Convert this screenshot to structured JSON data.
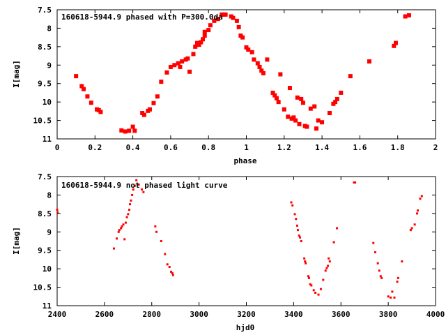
{
  "chart_data": [
    {
      "type": "scatter",
      "title": "160618-5944.9 phased with P=300.0da",
      "xlabel": "phase",
      "ylabel": "I[mag]",
      "xlim": [
        0,
        2
      ],
      "ylim": [
        11,
        7.5
      ],
      "y_inverted": true,
      "grid": false,
      "xticks": [
        "0",
        "0.2",
        "0.4",
        "0.6",
        "0.8",
        "1",
        "1.2",
        "1.4",
        "1.6",
        "1.8",
        "2"
      ],
      "xtick_values": [
        0,
        0.2,
        0.4,
        0.6,
        0.8,
        1.0,
        1.2,
        1.4,
        1.6,
        1.8,
        2.0
      ],
      "yticks": [
        "7.5",
        "8",
        "8.5",
        "9",
        "9.5",
        "10",
        "10.5",
        "11"
      ],
      "ytick_values": [
        7.5,
        8,
        8.5,
        9,
        9.5,
        10,
        10.5,
        11
      ],
      "marker_color": "#ff0000",
      "marker_size": "large",
      "points": [
        [
          0.1,
          9.3
        ],
        [
          0.13,
          9.57
        ],
        [
          0.14,
          9.65
        ],
        [
          0.16,
          9.85
        ],
        [
          0.18,
          10.02
        ],
        [
          0.21,
          10.2
        ],
        [
          0.22,
          10.22
        ],
        [
          0.23,
          10.27
        ],
        [
          0.34,
          10.77
        ],
        [
          0.36,
          10.8
        ],
        [
          0.38,
          10.78
        ],
        [
          0.4,
          10.67
        ],
        [
          0.41,
          10.78
        ],
        [
          0.45,
          10.3
        ],
        [
          0.46,
          10.35
        ],
        [
          0.48,
          10.24
        ],
        [
          0.49,
          10.2
        ],
        [
          0.51,
          10.03
        ],
        [
          0.53,
          9.85
        ],
        [
          0.55,
          9.45
        ],
        [
          0.58,
          9.2
        ],
        [
          0.6,
          9.05
        ],
        [
          0.62,
          9.0
        ],
        [
          0.64,
          8.95
        ],
        [
          0.65,
          9.05
        ],
        [
          0.66,
          8.9
        ],
        [
          0.68,
          8.85
        ],
        [
          0.69,
          8.82
        ],
        [
          0.7,
          9.18
        ],
        [
          0.72,
          8.7
        ],
        [
          0.73,
          8.5
        ],
        [
          0.74,
          8.4
        ],
        [
          0.75,
          8.45
        ],
        [
          0.76,
          8.38
        ],
        [
          0.77,
          8.3
        ],
        [
          0.78,
          8.2
        ],
        [
          0.78,
          8.1
        ],
        [
          0.8,
          8.05
        ],
        [
          0.81,
          7.92
        ],
        [
          0.83,
          7.8
        ],
        [
          0.85,
          7.75
        ],
        [
          0.87,
          7.63
        ],
        [
          0.88,
          7.63
        ],
        [
          0.89,
          7.63
        ],
        [
          0.92,
          7.68
        ],
        [
          0.93,
          7.72
        ],
        [
          0.95,
          7.8
        ],
        [
          0.96,
          7.97
        ],
        [
          0.97,
          8.2
        ],
        [
          0.98,
          8.25
        ],
        [
          1.0,
          8.52
        ],
        [
          1.01,
          8.58
        ],
        [
          1.03,
          8.65
        ],
        [
          1.04,
          8.85
        ],
        [
          1.06,
          8.95
        ],
        [
          1.07,
          9.05
        ],
        [
          1.08,
          9.15
        ],
        [
          1.09,
          9.22
        ],
        [
          1.11,
          8.85
        ],
        [
          1.14,
          9.75
        ],
        [
          1.15,
          9.82
        ],
        [
          1.16,
          9.9
        ],
        [
          1.17,
          10.0
        ],
        [
          1.18,
          9.25
        ],
        [
          1.2,
          10.2
        ],
        [
          1.22,
          10.4
        ],
        [
          1.23,
          9.62
        ],
        [
          1.24,
          10.45
        ],
        [
          1.25,
          10.42
        ],
        [
          1.26,
          10.5
        ],
        [
          1.27,
          9.88
        ],
        [
          1.28,
          10.6
        ],
        [
          1.29,
          9.92
        ],
        [
          1.3,
          10.02
        ],
        [
          1.31,
          10.65
        ],
        [
          1.32,
          10.67
        ],
        [
          1.34,
          10.18
        ],
        [
          1.36,
          10.12
        ],
        [
          1.37,
          10.72
        ],
        [
          1.38,
          10.5
        ],
        [
          1.4,
          10.55
        ],
        [
          1.44,
          10.3
        ],
        [
          1.46,
          10.05
        ],
        [
          1.47,
          10.0
        ],
        [
          1.48,
          9.92
        ],
        [
          1.5,
          9.75
        ],
        [
          1.55,
          9.3
        ],
        [
          1.65,
          8.9
        ],
        [
          1.78,
          8.48
        ],
        [
          1.79,
          8.4
        ],
        [
          1.84,
          7.68
        ],
        [
          1.86,
          7.65
        ]
      ]
    },
    {
      "type": "scatter",
      "title": "160618-5944.9 not phased light curve",
      "xlabel": "hjd0",
      "ylabel": "I[mag]",
      "xlim": [
        2400,
        4000
      ],
      "ylim": [
        11,
        7.5
      ],
      "y_inverted": true,
      "grid": false,
      "xticks": [
        "2400",
        "2600",
        "2800",
        "3000",
        "3200",
        "3400",
        "3600",
        "3800",
        "4000"
      ],
      "xtick_values": [
        2400,
        2600,
        2800,
        3000,
        3200,
        3400,
        3600,
        3800,
        4000
      ],
      "yticks": [
        "7.5",
        "8",
        "8.5",
        "9",
        "9.5",
        "10",
        "10.5",
        "11"
      ],
      "ytick_values": [
        7.5,
        8,
        8.5,
        9,
        9.5,
        10,
        10.5,
        11
      ],
      "marker_color": "#ff0000",
      "marker_size": "small",
      "points": [
        [
          2400,
          8.4
        ],
        [
          2402,
          8.47
        ],
        [
          2640,
          9.45
        ],
        [
          2652,
          9.18
        ],
        [
          2660,
          9.0
        ],
        [
          2663,
          8.95
        ],
        [
          2670,
          8.9
        ],
        [
          2674,
          8.85
        ],
        [
          2680,
          8.8
        ],
        [
          2685,
          9.2
        ],
        [
          2690,
          8.75
        ],
        [
          2695,
          8.6
        ],
        [
          2700,
          8.52
        ],
        [
          2705,
          8.4
        ],
        [
          2708,
          8.25
        ],
        [
          2712,
          8.15
        ],
        [
          2717,
          8.0
        ],
        [
          2722,
          7.85
        ],
        [
          2728,
          7.75
        ],
        [
          2735,
          7.6
        ],
        [
          2745,
          7.72
        ],
        [
          2758,
          7.85
        ],
        [
          2765,
          7.92
        ],
        [
          2815,
          8.85
        ],
        [
          2820,
          9.0
        ],
        [
          2840,
          9.25
        ],
        [
          2856,
          9.6
        ],
        [
          2866,
          9.88
        ],
        [
          2875,
          9.95
        ],
        [
          2882,
          10.08
        ],
        [
          2887,
          10.12
        ],
        [
          2890,
          10.17
        ],
        [
          3390,
          8.2
        ],
        [
          3395,
          8.28
        ],
        [
          3405,
          8.52
        ],
        [
          3410,
          8.65
        ],
        [
          3415,
          8.83
        ],
        [
          3418,
          8.95
        ],
        [
          3423,
          9.1
        ],
        [
          3427,
          9.15
        ],
        [
          3432,
          9.25
        ],
        [
          3445,
          9.72
        ],
        [
          3448,
          9.8
        ],
        [
          3451,
          9.85
        ],
        [
          3462,
          10.2
        ],
        [
          3465,
          10.25
        ],
        [
          3470,
          10.42
        ],
        [
          3475,
          10.45
        ],
        [
          3485,
          10.58
        ],
        [
          3492,
          10.65
        ],
        [
          3505,
          10.7
        ],
        [
          3515,
          10.55
        ],
        [
          3525,
          10.3
        ],
        [
          3535,
          10.05
        ],
        [
          3540,
          9.98
        ],
        [
          3545,
          9.92
        ],
        [
          3548,
          9.72
        ],
        [
          3553,
          9.8
        ],
        [
          3570,
          9.28
        ],
        [
          3583,
          8.9
        ],
        [
          3655,
          7.66
        ],
        [
          3660,
          7.66
        ],
        [
          3737,
          9.3
        ],
        [
          3745,
          9.55
        ],
        [
          3756,
          9.85
        ],
        [
          3762,
          10.05
        ],
        [
          3768,
          10.2
        ],
        [
          3772,
          10.25
        ],
        [
          3800,
          10.75
        ],
        [
          3810,
          10.78
        ],
        [
          3817,
          10.62
        ],
        [
          3826,
          10.78
        ],
        [
          3838,
          10.35
        ],
        [
          3842,
          10.25
        ],
        [
          3858,
          9.8
        ],
        [
          3895,
          8.95
        ],
        [
          3900,
          8.9
        ],
        [
          3912,
          8.8
        ],
        [
          3922,
          8.5
        ],
        [
          3925,
          8.42
        ],
        [
          3935,
          8.1
        ],
        [
          3942,
          8.03
        ]
      ]
    }
  ]
}
